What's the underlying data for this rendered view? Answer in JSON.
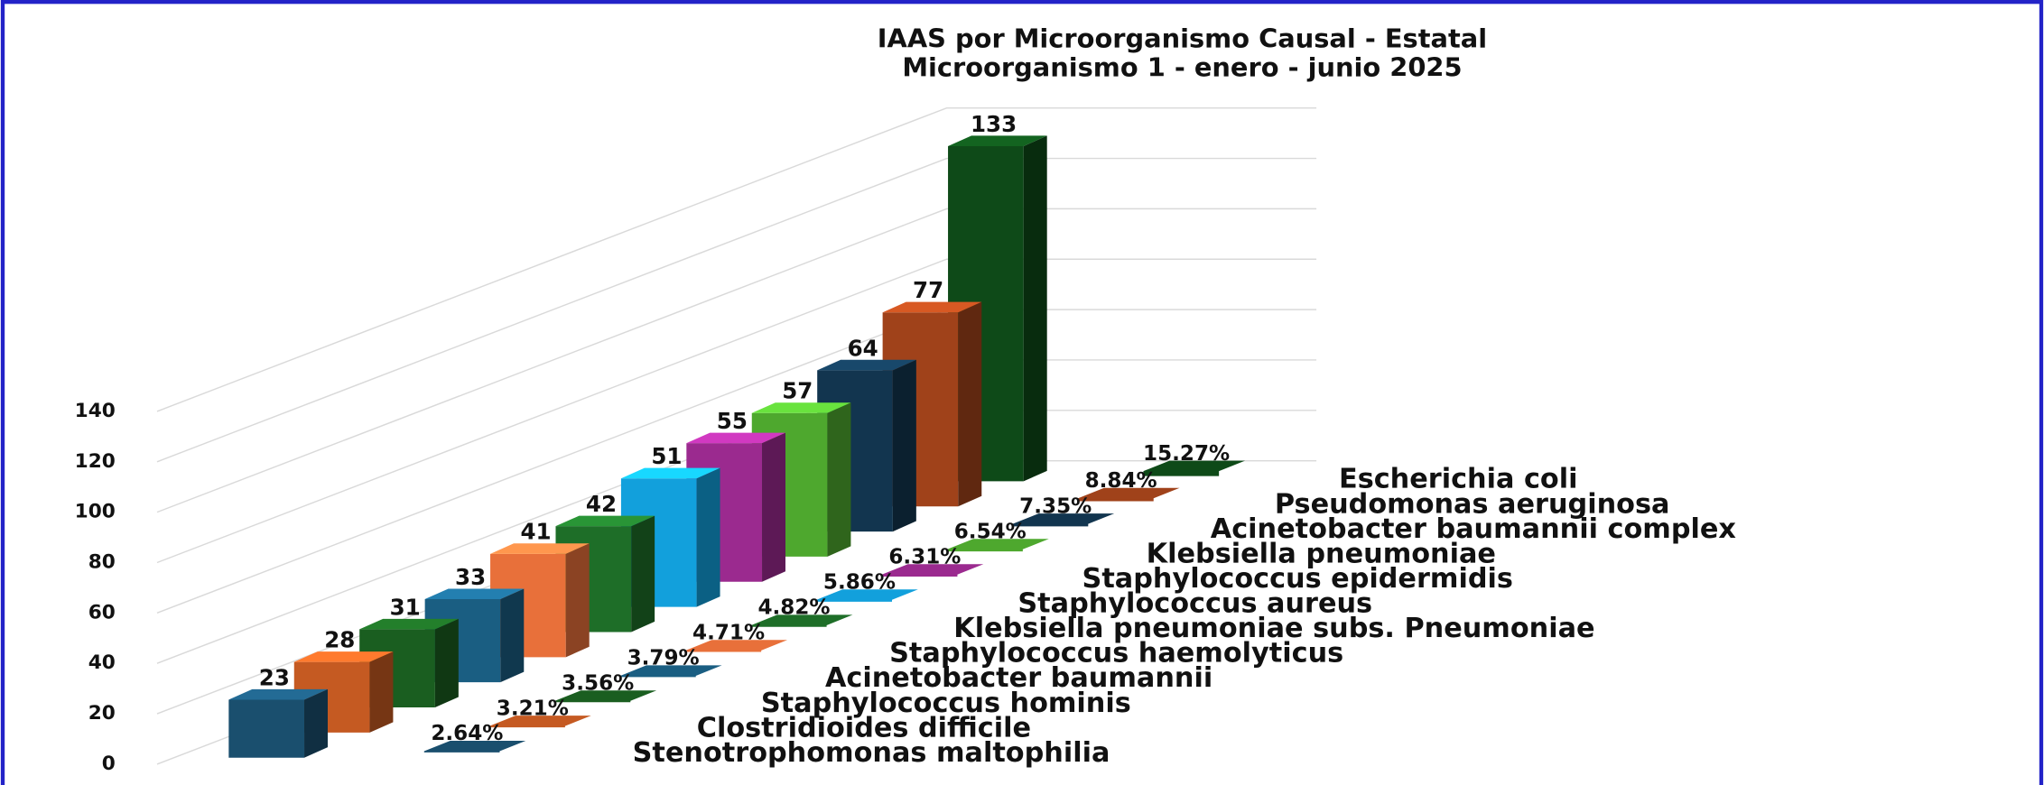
{
  "chart_data": {
    "type": "bar3d",
    "title": "IAAS por Microorganismo Causal - Estatal",
    "subtitle": "Microorganismo 1 - enero - junio 2025",
    "categories": [
      "Stenotrophomonas maltophilia",
      "Clostridioides difficile",
      "Staphylococcus hominis",
      "Acinetobacter baumannii",
      "Staphylococcus haemolyticus",
      "Klebsiella pneumoniae subs. Pneumoniae",
      "Staphylococcus aureus",
      "Staphylococcus epidermidis",
      "Klebsiella pneumoniae",
      "Acinetobacter baumannii complex",
      "Pseudomonas aeruginosa",
      "Escherichia coli"
    ],
    "series": [
      {
        "values": [
          23,
          28,
          31,
          33,
          41,
          42,
          51,
          55,
          57,
          64,
          77,
          133
        ],
        "colors": [
          "#1a4f6e",
          "#c55a22",
          "#1a5e20",
          "#1a5e82",
          "#e8703a",
          "#1e6e28",
          "#12a0dc",
          "#9b2a8f",
          "#4ea82e",
          "#12354f",
          "#a0421a",
          "#0e4a18"
        ]
      },
      {
        "values": [
          2.64,
          3.21,
          3.56,
          3.79,
          4.71,
          4.82,
          5.86,
          6.31,
          6.54,
          7.35,
          8.84,
          15.27
        ],
        "value_labels": [
          "2.64%",
          "3.21%",
          "3.56%",
          "3.79%",
          "4.71%",
          "4.82%",
          "5.86%",
          "6.31%",
          "6.54%",
          "7.35%",
          "8.84%",
          "15.27%"
        ],
        "colors": [
          "#1a4f6e",
          "#c55a22",
          "#1a5e20",
          "#1a5e82",
          "#e8703a",
          "#1e6e28",
          "#12a0dc",
          "#9b2a8f",
          "#4ea82e",
          "#12354f",
          "#a0421a",
          "#0e4a18"
        ]
      }
    ],
    "ylim": [
      0,
      140
    ],
    "yticks": [
      0,
      20,
      40,
      60,
      80,
      100,
      120,
      140
    ],
    "grid": true
  }
}
